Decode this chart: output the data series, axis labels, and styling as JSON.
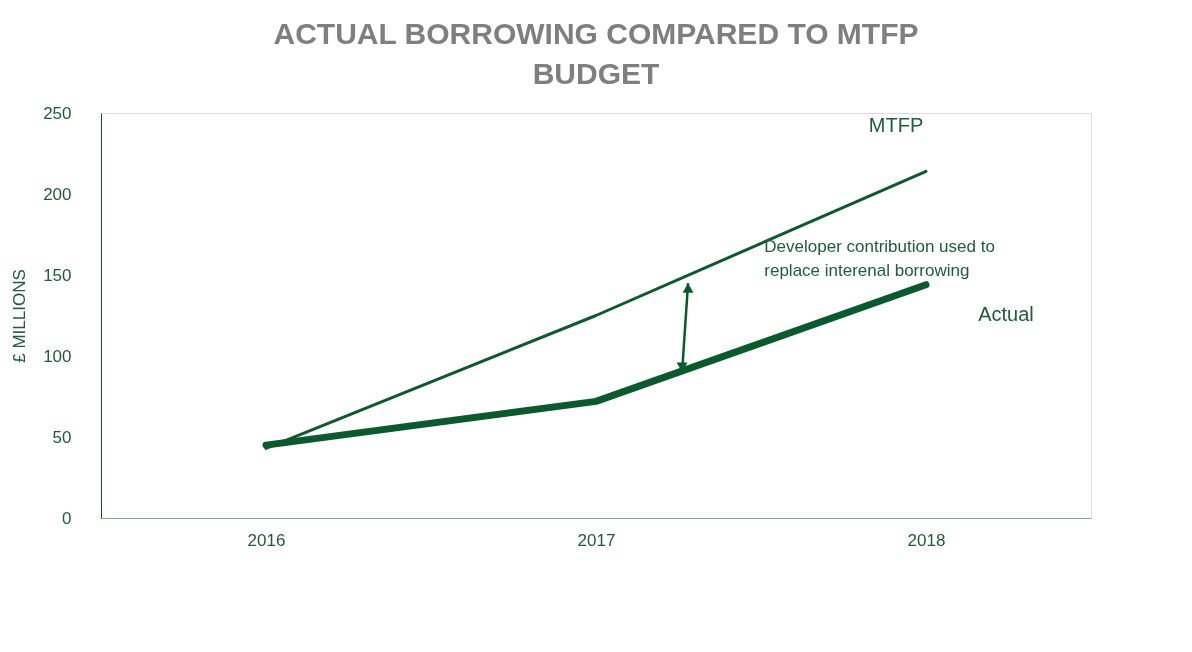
{
  "chart_data": {
    "type": "line",
    "title": "ACTUAL BORROWING COMPARED TO MTFP BUDGET",
    "ylabel": "£ MILLIONS",
    "categories": [
      "2016",
      "2017",
      "2018"
    ],
    "series": [
      {
        "name": "MTFP",
        "color": "#0b5a2e",
        "values": [
          43,
          125,
          214
        ]
      },
      {
        "name": "Actual",
        "color": "#0b5a2e",
        "values": [
          45,
          72,
          144
        ]
      }
    ],
    "ylim": [
      0,
      250
    ],
    "yticks": [
      0,
      50,
      100,
      150,
      200,
      250
    ],
    "grid": false,
    "legend": false,
    "marker": "none",
    "line_style": "solid",
    "annotations": [
      "Developer contribution used to replace interenal borrowing"
    ]
  }
}
